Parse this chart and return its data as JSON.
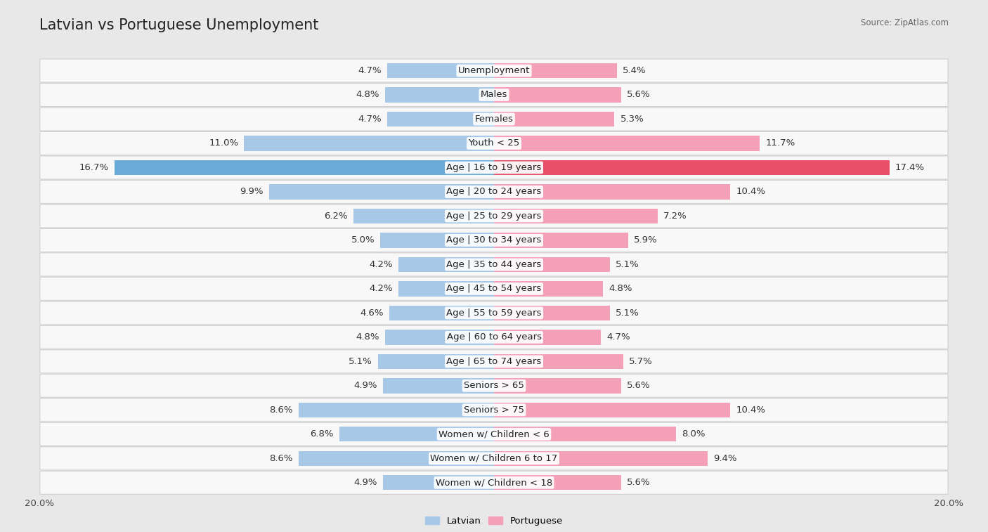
{
  "title": "Latvian vs Portuguese Unemployment",
  "source": "Source: ZipAtlas.com",
  "categories": [
    "Unemployment",
    "Males",
    "Females",
    "Youth < 25",
    "Age | 16 to 19 years",
    "Age | 20 to 24 years",
    "Age | 25 to 29 years",
    "Age | 30 to 34 years",
    "Age | 35 to 44 years",
    "Age | 45 to 54 years",
    "Age | 55 to 59 years",
    "Age | 60 to 64 years",
    "Age | 65 to 74 years",
    "Seniors > 65",
    "Seniors > 75",
    "Women w/ Children < 6",
    "Women w/ Children 6 to 17",
    "Women w/ Children < 18"
  ],
  "latvian": [
    4.7,
    4.8,
    4.7,
    11.0,
    16.7,
    9.9,
    6.2,
    5.0,
    4.2,
    4.2,
    4.6,
    4.8,
    5.1,
    4.9,
    8.6,
    6.8,
    8.6,
    4.9
  ],
  "portuguese": [
    5.4,
    5.6,
    5.3,
    11.7,
    17.4,
    10.4,
    7.2,
    5.9,
    5.1,
    4.8,
    5.1,
    4.7,
    5.7,
    5.6,
    10.4,
    8.0,
    9.4,
    5.6
  ],
  "latvian_color": "#a8c8e8",
  "portuguese_color": "#f4a0b8",
  "latvian_highlight": "#6aaad8",
  "portuguese_highlight": "#e8506a",
  "axis_max": 20.0,
  "background_color": "#e8e8e8",
  "row_bg_color": "#f8f8f8",
  "bar_height": 0.62,
  "title_fontsize": 15,
  "label_fontsize": 9.5,
  "value_fontsize": 9.5
}
